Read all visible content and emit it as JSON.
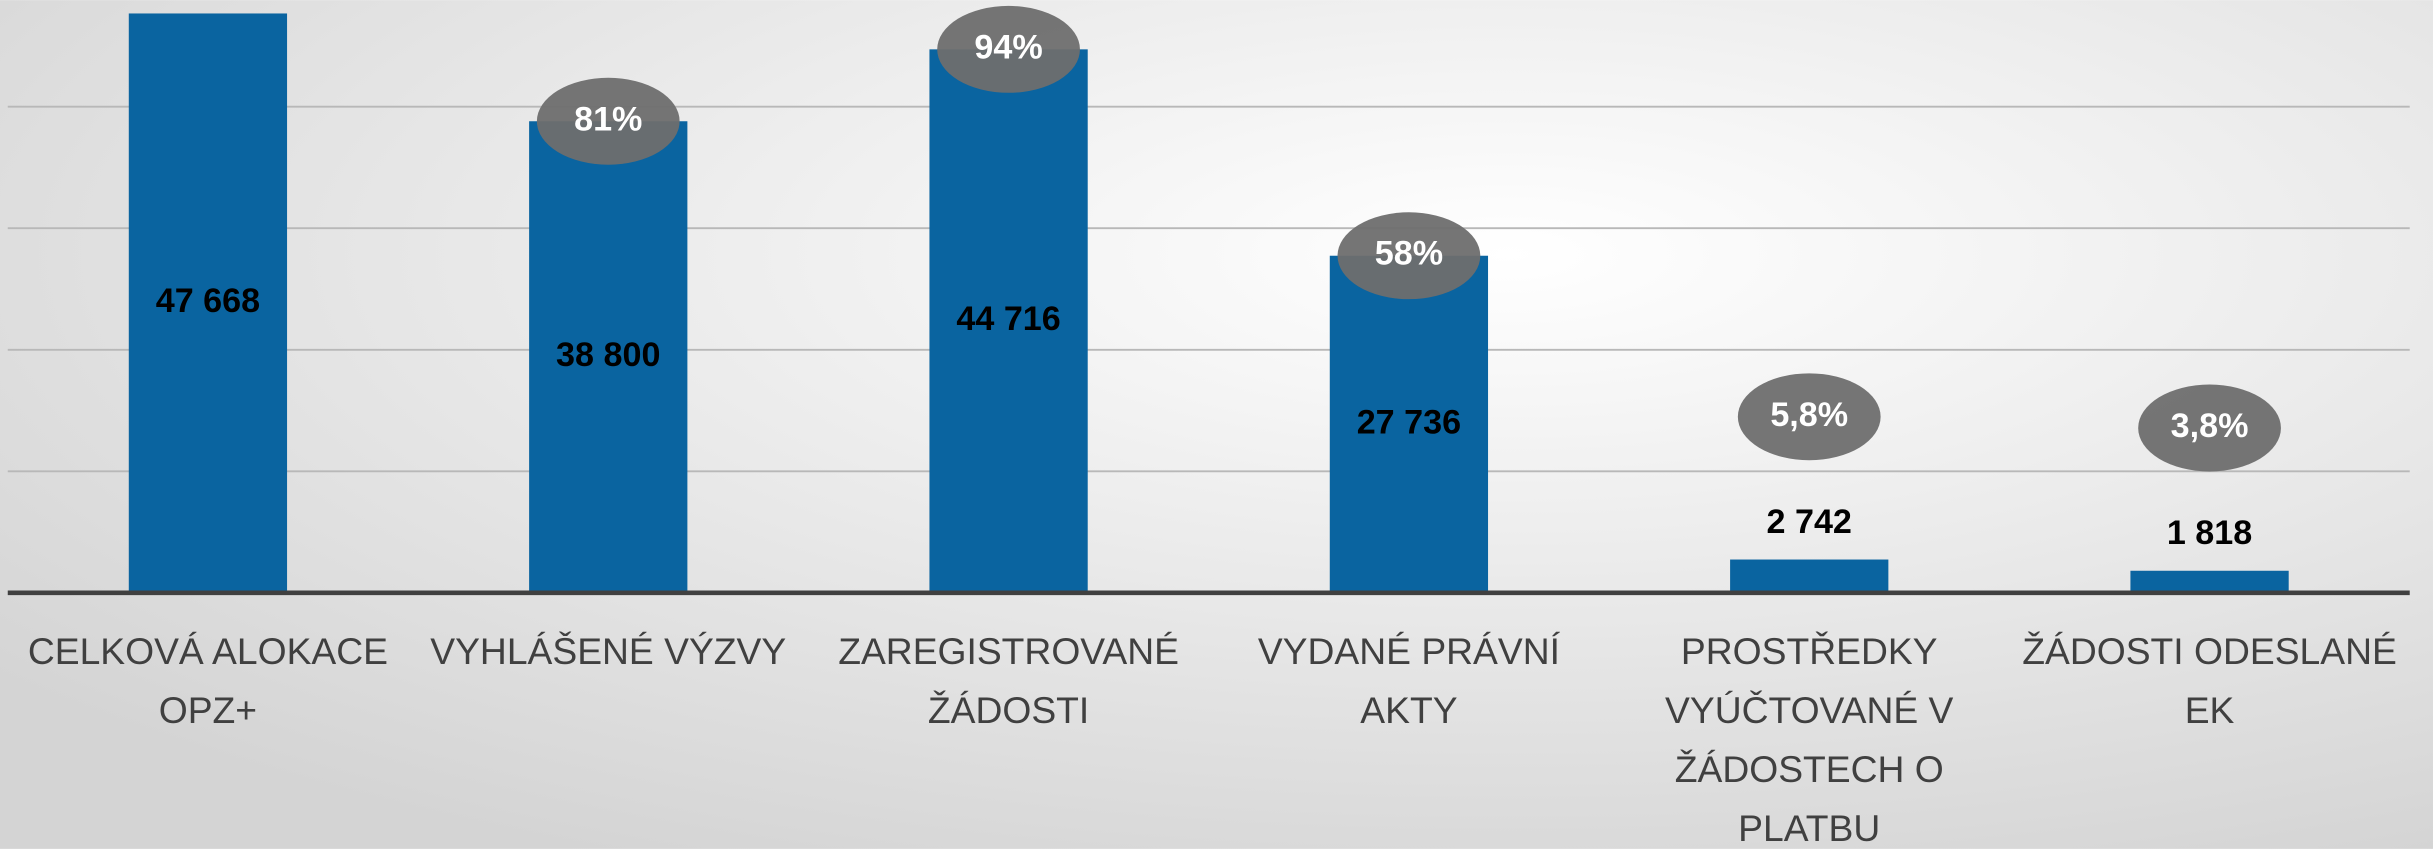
{
  "chart_data": {
    "type": "bar",
    "categories": [
      "CELKOVÁ ALOKACE OPZ+",
      "VYHLÁŠENÉ VÝZVY",
      "ZAREGISTROVANÉ ŽÁDOSTI",
      "VYDANÉ PRÁVNÍ AKTY",
      "PROSTŘEDKY VYÚČTOVANÉ V ŽÁDOSTECH O PLATBU",
      "ŽÁDOSTI ODESLANÉ EK"
    ],
    "values": [
      47668,
      38800,
      44716,
      27736,
      2742,
      1818
    ],
    "value_labels": [
      "47 668",
      "38 800",
      "44 716",
      "27 736",
      "2 742",
      "1 818"
    ],
    "percentages": [
      null,
      81,
      94,
      58,
      5.8,
      3.8
    ],
    "percentage_labels": [
      null,
      "81%",
      "94%",
      "58%",
      "5,8%",
      "3,8%"
    ],
    "color": "#0a64a0",
    "ylim": [
      0,
      48000
    ],
    "yticks": [
      0,
      10000,
      20000,
      30000,
      40000
    ],
    "grid": true
  }
}
